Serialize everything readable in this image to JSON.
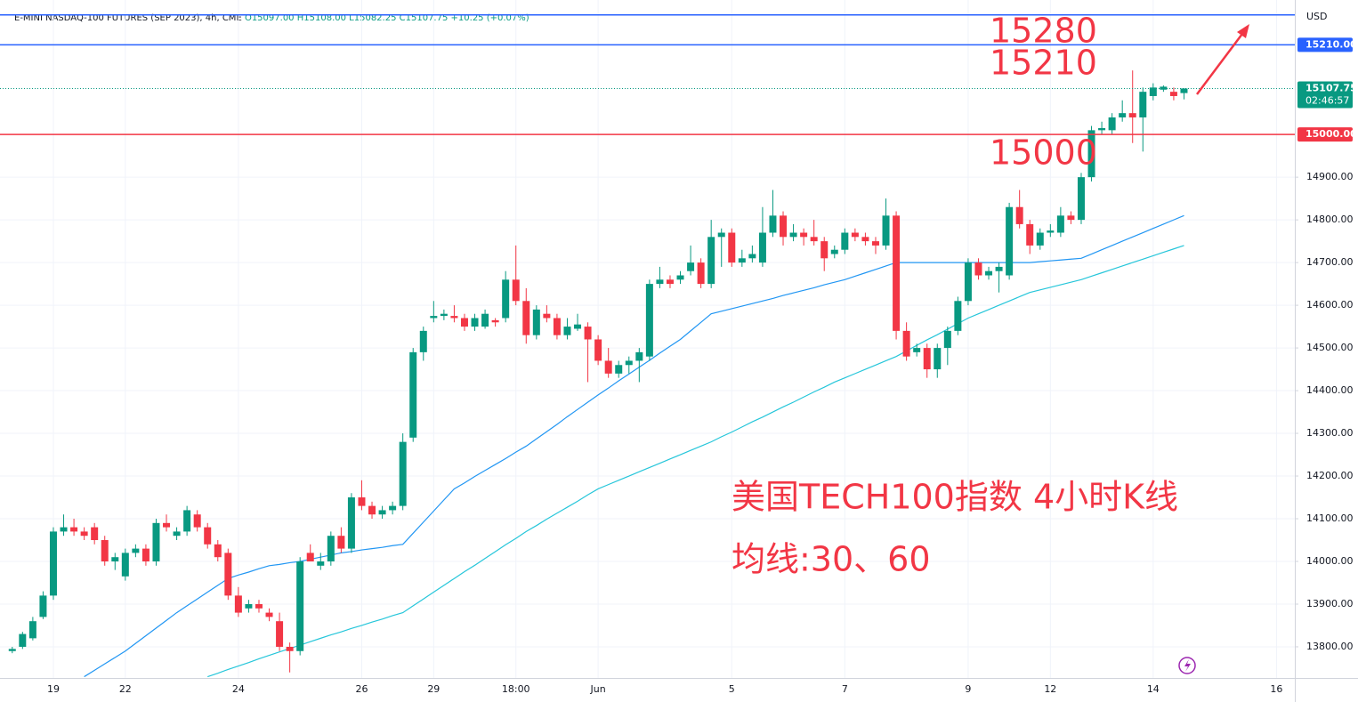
{
  "chart_data": {
    "type": "candlestick",
    "header": {
      "title": "E-MINI NASDAQ-100 FUTURES (SEP 2023), 4h, CME",
      "open": "O15097.00",
      "high": "H15108.00",
      "low": "L15082.25",
      "close": "C15107.75",
      "change": "+10.25 (+0.07%)"
    },
    "currency": "USD",
    "up_color": "#089981",
    "down_color": "#f23645",
    "categories": [
      null,
      null,
      null,
      null,
      "19",
      null,
      null,
      null,
      null,
      null,
      null,
      "22",
      null,
      null,
      null,
      null,
      null,
      null,
      null,
      null,
      null,
      null,
      "24",
      null,
      null,
      null,
      null,
      null,
      null,
      null,
      null,
      null,
      null,
      null,
      "26",
      null,
      null,
      null,
      null,
      null,
      null,
      "29",
      null,
      null,
      null,
      null,
      null,
      null,
      null,
      "18:00",
      null,
      null,
      null,
      null,
      null,
      null,
      null,
      "Jun",
      null,
      null,
      null,
      null,
      null,
      null,
      null,
      null,
      null,
      null,
      null,
      null,
      "5",
      null,
      null,
      null,
      null,
      null,
      null,
      null,
      null,
      null,
      null,
      "7",
      null,
      null,
      null,
      null,
      null,
      null,
      null,
      null,
      null,
      null,
      null,
      "9",
      null,
      null,
      null,
      null,
      null,
      null,
      null,
      "12",
      null,
      null,
      null,
      null,
      null,
      null,
      null,
      null,
      null,
      "14",
      null,
      null,
      null,
      null,
      null,
      null,
      null,
      null,
      null,
      null,
      null,
      "16"
    ],
    "open": [
      13790,
      13800,
      13820,
      13870,
      13920,
      14070,
      14080,
      14070,
      14080,
      14050,
      14000,
      13965,
      14020,
      14030,
      14000,
      14090,
      14060,
      14070,
      14110,
      14080,
      14040,
      14020,
      13920,
      13890,
      13900,
      13880,
      13860,
      13800,
      13790,
      14020,
      13990,
      14000,
      14060,
      14030,
      14150,
      14130,
      14110,
      14120,
      14130,
      14290,
      14490,
      14570,
      14575,
      14575,
      14570,
      14550,
      14550,
      14565,
      14570,
      14660,
      14610,
      14530,
      14580,
      14570,
      14530,
      14545,
      14550,
      14520,
      14470,
      14440,
      14460,
      14470,
      14480,
      14650,
      14660,
      14660,
      14680,
      14700,
      14650,
      14760,
      14770,
      14700,
      14710,
      14700,
      14770,
      14810,
      14760,
      14770,
      14760,
      14750,
      14720,
      14730,
      14770,
      14760,
      14750,
      14740,
      14810,
      14540,
      14490,
      14500,
      14450,
      14500,
      14540,
      14610,
      14700,
      14670,
      14680,
      14670,
      14830,
      14790,
      14740,
      14770,
      14770,
      14810,
      14800,
      14900,
      15010,
      15010,
      15040,
      15050,
      15040,
      15090,
      15105,
      15100,
      15097,
      null,
      null,
      null,
      null,
      null,
      null,
      null,
      null,
      null
    ],
    "high": [
      13800,
      13835,
      13870,
      13930,
      14080,
      14110,
      14100,
      14080,
      14090,
      14060,
      14020,
      14030,
      14040,
      14040,
      14100,
      14110,
      14080,
      14130,
      14120,
      14090,
      14050,
      14030,
      13940,
      13910,
      13910,
      13890,
      13880,
      13810,
      14010,
      14040,
      14020,
      14070,
      14080,
      14160,
      14190,
      14140,
      14130,
      14140,
      14300,
      14500,
      14550,
      14610,
      14590,
      14600,
      14580,
      14580,
      14590,
      14570,
      14680,
      14740,
      14640,
      14600,
      14600,
      14580,
      14570,
      14580,
      14560,
      14530,
      14500,
      14470,
      14480,
      14500,
      14660,
      14690,
      14670,
      14680,
      14740,
      14710,
      14800,
      14780,
      14780,
      14730,
      14740,
      14830,
      14870,
      14820,
      14790,
      14780,
      14800,
      14760,
      14740,
      14780,
      14780,
      14770,
      14760,
      14850,
      14820,
      14560,
      14510,
      14510,
      14510,
      14550,
      14620,
      14710,
      14710,
      14690,
      14700,
      14840,
      14870,
      14800,
      14780,
      14790,
      14830,
      14820,
      14910,
      15020,
      15030,
      15050,
      15080,
      15150,
      15110,
      15120,
      15115,
      15110,
      15108,
      null,
      null,
      null,
      null,
      null,
      null,
      null,
      null,
      null
    ],
    "low": [
      13785,
      13795,
      13815,
      13865,
      13910,
      14060,
      14060,
      14050,
      14040,
      13990,
      13980,
      13955,
      14010,
      13990,
      13990,
      14070,
      14050,
      14060,
      14070,
      14030,
      14000,
      13910,
      13870,
      13880,
      13880,
      13860,
      13790,
      13740,
      13780,
      14000,
      13980,
      13990,
      14020,
      14020,
      14120,
      14100,
      14100,
      14110,
      14120,
      14280,
      14470,
      14560,
      14565,
      14560,
      14540,
      14540,
      14545,
      14550,
      14560,
      14600,
      14510,
      14520,
      14560,
      14520,
      14520,
      14540,
      14420,
      14460,
      14430,
      14430,
      14440,
      14420,
      14470,
      14640,
      14640,
      14650,
      14670,
      14640,
      14640,
      14690,
      14690,
      14690,
      14700,
      14690,
      14760,
      14740,
      14750,
      14740,
      14740,
      14680,
      14710,
      14720,
      14750,
      14740,
      14720,
      14730,
      14520,
      14470,
      14480,
      14430,
      14430,
      14460,
      14530,
      14600,
      14660,
      14660,
      14630,
      14660,
      14780,
      14720,
      14730,
      14760,
      14760,
      14790,
      14790,
      14890,
      15000,
      15000,
      15030,
      14980,
      14960,
      15080,
      15100,
      15080,
      15082.25,
      null,
      null,
      null,
      null,
      null,
      null,
      null,
      null,
      null
    ],
    "close": [
      13795,
      13830,
      13860,
      13920,
      14070,
      14080,
      14070,
      14060,
      14050,
      14000,
      14010,
      14020,
      14030,
      14000,
      14090,
      14080,
      14070,
      14120,
      14080,
      14040,
      14010,
      13920,
      13880,
      13900,
      13890,
      13870,
      13800,
      13790,
      14000,
      14000,
      14000,
      14060,
      14030,
      14150,
      14130,
      14110,
      14120,
      14130,
      14280,
      14490,
      14540,
      14575,
      14580,
      14570,
      14550,
      14570,
      14580,
      14560,
      14660,
      14610,
      14530,
      14590,
      14570,
      14530,
      14550,
      14555,
      14520,
      14470,
      14440,
      14460,
      14470,
      14490,
      14650,
      14660,
      14650,
      14670,
      14700,
      14650,
      14760,
      14770,
      14700,
      14710,
      14720,
      14770,
      14810,
      14760,
      14770,
      14760,
      14750,
      14710,
      14730,
      14770,
      14760,
      14750,
      14740,
      14810,
      14540,
      14480,
      14500,
      14450,
      14500,
      14540,
      14610,
      14700,
      14670,
      14680,
      14690,
      14830,
      14790,
      14740,
      14770,
      14775,
      14810,
      14800,
      14900,
      15010,
      15015,
      15040,
      15050,
      15040,
      15100,
      15110,
      15112,
      15090,
      15107.75,
      null,
      null,
      null,
      null,
      null,
      null,
      null,
      null,
      null
    ],
    "ma": [
      {
        "color": "#2196f3",
        "values": [
          null,
          null,
          null,
          null,
          null,
          null,
          null,
          13730,
          13745,
          13760,
          13775,
          13790,
          13808,
          13826,
          13844,
          13862,
          13880,
          13896,
          13912,
          13928,
          13944,
          13960,
          13968,
          13975,
          13983,
          13990,
          13993,
          13997,
          14000,
          14005,
          14010,
          14015,
          14020,
          14023,
          14027,
          14030,
          14033,
          14037,
          14040,
          14066,
          14092,
          14118,
          14144,
          14170,
          14184,
          14199,
          14213,
          14227,
          14241,
          14256,
          14270,
          14287,
          14304,
          14321,
          14339,
          14356,
          14373,
          14390,
          14406,
          14423,
          14439,
          14455,
          14471,
          14488,
          14504,
          14520,
          14540,
          14560,
          14580,
          14586,
          14592,
          14598,
          14604,
          14610,
          14616,
          14623,
          14629,
          14635,
          14641,
          14648,
          14654,
          14660,
          14668,
          14676,
          14684,
          14692,
          14700,
          14700,
          14700,
          14700,
          14700,
          14700,
          14700,
          14700,
          14700,
          14700,
          14700,
          14700,
          14700,
          14700,
          14702,
          14704,
          14706,
          14708,
          14710,
          14720,
          14730,
          14740,
          14750,
          14760,
          14770,
          14780,
          14790,
          14800,
          14810,
          null,
          null,
          null,
          null,
          null,
          null,
          null,
          null,
          null
        ]
      },
      {
        "color": "#26c6da",
        "values": [
          null,
          null,
          null,
          null,
          null,
          null,
          null,
          null,
          null,
          null,
          null,
          null,
          null,
          null,
          null,
          null,
          null,
          null,
          null,
          13730,
          13738,
          13747,
          13755,
          13763,
          13772,
          13780,
          13788,
          13796,
          13804,
          13812,
          13820,
          13828,
          13835,
          13843,
          13850,
          13858,
          13865,
          13873,
          13880,
          13896,
          13912,
          13928,
          13944,
          13960,
          13976,
          13991,
          14007,
          14023,
          14039,
          14054,
          14070,
          14084,
          14099,
          14113,
          14127,
          14141,
          14156,
          14170,
          14180,
          14190,
          14200,
          14210,
          14220,
          14230,
          14240,
          14250,
          14260,
          14270,
          14280,
          14292,
          14303,
          14315,
          14327,
          14338,
          14350,
          14362,
          14373,
          14385,
          14397,
          14408,
          14420,
          14430,
          14440,
          14450,
          14460,
          14470,
          14480,
          14493,
          14506,
          14519,
          14531,
          14544,
          14557,
          14570,
          14580,
          14590,
          14600,
          14610,
          14620,
          14630,
          14636,
          14642,
          14648,
          14654,
          14660,
          14668,
          14676,
          14684,
          14692,
          14700,
          14708,
          14716,
          14724,
          14732,
          14740,
          null,
          null,
          null,
          null,
          null,
          null,
          null,
          null,
          null
        ]
      }
    ],
    "hlines": [
      {
        "value": 15280,
        "color": "#2962ff"
      },
      {
        "value": 15210,
        "label": "15210.00",
        "color": "#2962ff"
      },
      {
        "value": 15000,
        "label": "15000.00",
        "color": "#f23645"
      }
    ],
    "last_price": {
      "value": 15107.75,
      "label": "15107.75",
      "countdown": "02:46:57",
      "color": "#089981"
    },
    "ylim": [
      13727,
      15315
    ],
    "yticks": [
      {
        "value": 13800,
        "label": "13800.00"
      },
      {
        "value": 13900,
        "label": "13900.00"
      },
      {
        "value": 14000,
        "label": "14000.00"
      },
      {
        "value": 14100,
        "label": "14100.00"
      },
      {
        "value": 14200,
        "label": "14200.00"
      },
      {
        "value": 14300,
        "label": "14300.00"
      },
      {
        "value": 14400,
        "label": "14400.00"
      },
      {
        "value": 14500,
        "label": "14500.00"
      },
      {
        "value": 14600,
        "label": "14600.00"
      },
      {
        "value": 14700,
        "label": "14700.00"
      },
      {
        "value": 14800,
        "label": "14800.00"
      },
      {
        "value": 14900,
        "label": "14900.00"
      }
    ],
    "annotations": [
      "15280",
      "15210",
      "15000",
      "美国TECH100指数 4小时K线",
      "均线:30、60"
    ]
  }
}
